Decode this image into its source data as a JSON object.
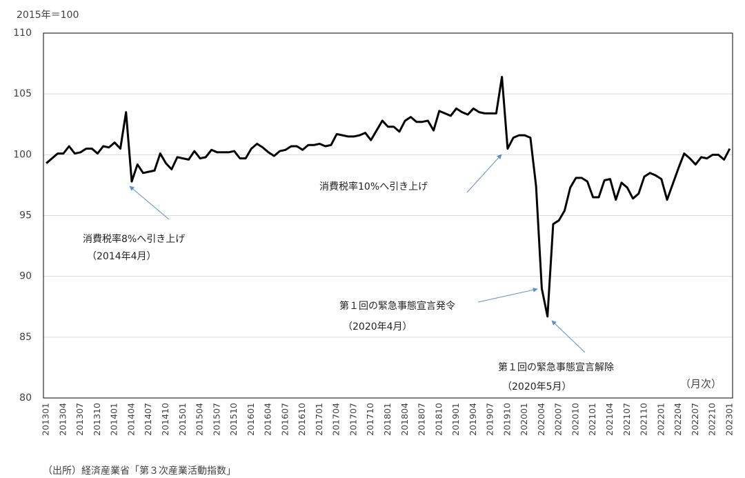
{
  "chart_data": {
    "type": "line",
    "y_unit": "2015年＝100",
    "x_unit": "（月次）",
    "source": "（出所）経済産業省「第３次産業活動指数」",
    "color": "#000000",
    "grid": true,
    "ylim": [
      80,
      110
    ],
    "yticks": [
      80,
      85,
      90,
      95,
      100,
      105,
      110
    ],
    "categories": [
      "201301",
      null,
      null,
      "201304",
      null,
      null,
      "201307",
      null,
      null,
      "201310",
      null,
      null,
      "201401",
      null,
      null,
      "201404",
      null,
      null,
      "201407",
      null,
      null,
      "201410",
      null,
      null,
      "201501",
      null,
      null,
      "201504",
      null,
      null,
      "201507",
      null,
      null,
      "201510",
      null,
      null,
      "201601",
      null,
      null,
      "201604",
      null,
      null,
      "201607",
      null,
      null,
      "201610",
      null,
      null,
      "201701",
      null,
      null,
      "201704",
      null,
      null,
      "201707",
      null,
      null,
      "201710",
      null,
      null,
      "201801",
      null,
      null,
      "201804",
      null,
      null,
      "201807",
      null,
      null,
      "201810",
      null,
      null,
      "201901",
      null,
      null,
      "201904",
      null,
      null,
      "201907",
      null,
      null,
      "201910",
      null,
      null,
      "202001",
      null,
      null,
      "202004",
      null,
      null,
      "202007",
      null,
      null,
      "202010",
      null,
      null,
      "202101",
      null,
      null,
      "202104",
      null,
      null,
      "202107",
      null,
      null,
      "202110",
      null,
      null,
      "202201",
      null,
      null,
      "202204",
      null,
      null,
      "202207",
      null,
      null,
      "202210",
      null,
      null,
      "202301"
    ],
    "values": [
      99.3,
      99.7,
      100.1,
      100.1,
      100.7,
      100.1,
      100.2,
      100.5,
      100.5,
      100.1,
      100.7,
      100.6,
      101.0,
      100.5,
      103.5,
      97.8,
      99.2,
      98.5,
      98.6,
      98.7,
      100.1,
      99.3,
      98.8,
      99.8,
      99.7,
      99.6,
      100.3,
      99.7,
      99.8,
      100.4,
      100.2,
      100.2,
      100.2,
      100.3,
      99.7,
      99.7,
      100.5,
      100.9,
      100.6,
      100.2,
      99.9,
      100.3,
      100.4,
      100.7,
      100.7,
      100.4,
      100.8,
      100.8,
      100.9,
      100.7,
      100.8,
      101.7,
      101.6,
      101.5,
      101.5,
      101.6,
      101.8,
      101.2,
      102.0,
      102.8,
      102.3,
      102.3,
      101.9,
      102.8,
      103.1,
      102.7,
      102.7,
      102.8,
      102.0,
      103.6,
      103.4,
      103.2,
      103.8,
      103.5,
      103.3,
      103.8,
      103.5,
      103.4,
      103.4,
      103.4,
      106.4,
      100.5,
      101.4,
      101.6,
      101.6,
      101.4,
      97.4,
      89.0,
      86.7,
      94.3,
      94.6,
      95.4,
      97.3,
      98.1,
      98.1,
      97.8,
      96.5,
      96.5,
      97.9,
      98.0,
      96.3,
      97.7,
      97.3,
      96.4,
      96.8,
      98.2,
      98.5,
      98.3,
      98.0,
      96.3,
      97.6,
      98.9,
      100.1,
      99.7,
      99.2,
      99.8,
      99.7,
      100.0,
      100.0,
      99.6,
      100.5
    ],
    "annotations": [
      {
        "text": "消費税率8%へ引き上げ",
        "subtext": "（2014年4月）"
      },
      {
        "text": "消費税率10%へ引き上げ"
      },
      {
        "text": "第１回の緊急事態宣言発令",
        "subtext": "（2020年4月）"
      },
      {
        "text": "第１回の緊急事態宣言解除",
        "subtext": "（2020年5月）"
      }
    ]
  }
}
